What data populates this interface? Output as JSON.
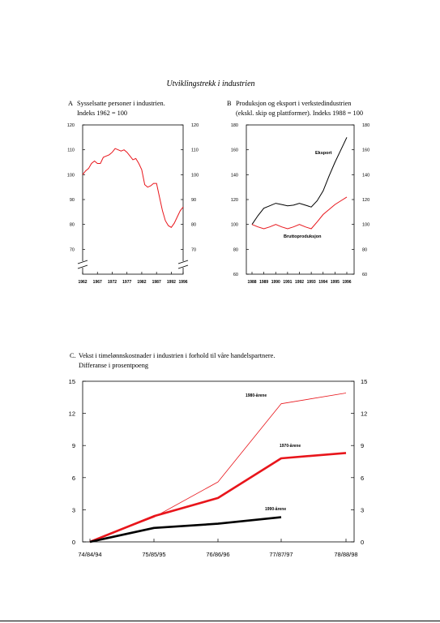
{
  "page_title": "Utviklingstrekk i industrien",
  "colors": {
    "red": "#e8151b",
    "black": "#000000"
  },
  "chart_data": [
    {
      "panel_letter": "A",
      "title_line1": "Sysselsatte personer i industrien.",
      "title_line2": "Indeks 1962 = 100",
      "type": "line",
      "ylim": [
        60,
        120
      ],
      "axis_break": true,
      "y_ticks": [
        70,
        80,
        90,
        100,
        110,
        120
      ],
      "y_tick_labels": [
        "70",
        "80",
        "90",
        "100",
        "110",
        "120"
      ],
      "x_ticks": [
        1962,
        1967,
        1972,
        1977,
        1982,
        1987,
        1992,
        1996
      ],
      "x_tick_labels": [
        "1962",
        "1967",
        "1972",
        "1977",
        "1982",
        "1987",
        "1992",
        "1996"
      ],
      "xlim": [
        1962,
        1996
      ],
      "series": [
        {
          "color": "#e8151b",
          "x": [
            1962,
            1963,
            1964,
            1965,
            1966,
            1967,
            1968,
            1969,
            1970,
            1971,
            1972,
            1973,
            1974,
            1975,
            1976,
            1977,
            1978,
            1979,
            1980,
            1981,
            1982,
            1983,
            1984,
            1985,
            1986,
            1987,
            1988,
            1989,
            1990,
            1991,
            1992,
            1993,
            1994,
            1995,
            1996
          ],
          "y": [
            100,
            101.5,
            102.5,
            104.5,
            105.5,
            104.5,
            104.5,
            107,
            107.5,
            108,
            109,
            110.5,
            110,
            109.5,
            110,
            109,
            107.5,
            106,
            106.5,
            104.5,
            102,
            96,
            95,
            95.5,
            96.5,
            96.5,
            91,
            85.5,
            81.5,
            79.5,
            78.8,
            80.5,
            83,
            85.5,
            87
          ]
        }
      ]
    },
    {
      "panel_letter": "B",
      "title_line1": "Produksjon og eksport i verkstedindustrien",
      "title_line2": "(ekskl. skip og plattformer). Indeks 1988 = 100",
      "type": "line",
      "ylim": [
        60,
        180
      ],
      "y_ticks": [
        60,
        80,
        100,
        120,
        140,
        160,
        180
      ],
      "y_tick_labels": [
        "60",
        "80",
        "100",
        "120",
        "140",
        "160",
        "180"
      ],
      "x_ticks": [
        1988,
        1989,
        1990,
        1991,
        1992,
        1993,
        1994,
        1995,
        1996
      ],
      "x_tick_labels": [
        "1988",
        "1989",
        "1990",
        "1991",
        "1992",
        "1993",
        "1994",
        "1995",
        "1996"
      ],
      "xlim": [
        1988,
        1996
      ],
      "series": [
        {
          "name": "Eksport",
          "color": "#000000",
          "x": [
            1988,
            1988.5,
            1989,
            1989.5,
            1990,
            1990.5,
            1991,
            1991.5,
            1992,
            1992.5,
            1993,
            1993.5,
            1994,
            1994.5,
            1995,
            1995.5,
            1996
          ],
          "y": [
            100,
            107,
            113,
            115,
            117,
            116,
            115,
            115.5,
            117,
            115.5,
            114,
            119,
            127,
            139,
            150,
            160,
            170
          ]
        },
        {
          "name": "Bruttoproduksjon",
          "color": "#e8151b",
          "x": [
            1988,
            1988.5,
            1989,
            1989.5,
            1990,
            1990.5,
            1991,
            1991.5,
            1992,
            1992.5,
            1993,
            1993.5,
            1994,
            1994.5,
            1995,
            1995.5,
            1996
          ],
          "y": [
            100,
            98,
            96.5,
            98,
            100,
            98,
            96.5,
            98,
            100,
            98,
            96.5,
            102,
            108,
            112,
            116,
            119,
            122
          ]
        }
      ]
    },
    {
      "panel_letter": "C.",
      "title_line1": "Vekst i timelønnskostnader i industrien i forhold til våre handelspartnere.",
      "title_line2": "Differanse i prosentpoeng",
      "type": "line",
      "ylim": [
        0,
        15
      ],
      "y_ticks": [
        0,
        3,
        6,
        9,
        12,
        15
      ],
      "y_tick_labels": [
        "0",
        "3",
        "6",
        "9",
        "12",
        "15"
      ],
      "categories": [
        "74/84/94",
        "75/85/95",
        "76/86/96",
        "77/87/97",
        "78/88/98"
      ],
      "series": [
        {
          "name": "1980-årene",
          "color": "#e8151b",
          "weight": "thin",
          "values": [
            0,
            2.3,
            5.6,
            12.9,
            13.9
          ]
        },
        {
          "name": "1970-årene",
          "color": "#e8151b",
          "weight": "thick",
          "values": [
            0,
            2.4,
            4.1,
            7.8,
            8.3
          ]
        },
        {
          "name": "1990-årene",
          "color": "#000000",
          "weight": "thick",
          "values": [
            0,
            1.3,
            1.7,
            2.3,
            null
          ]
        }
      ]
    }
  ]
}
